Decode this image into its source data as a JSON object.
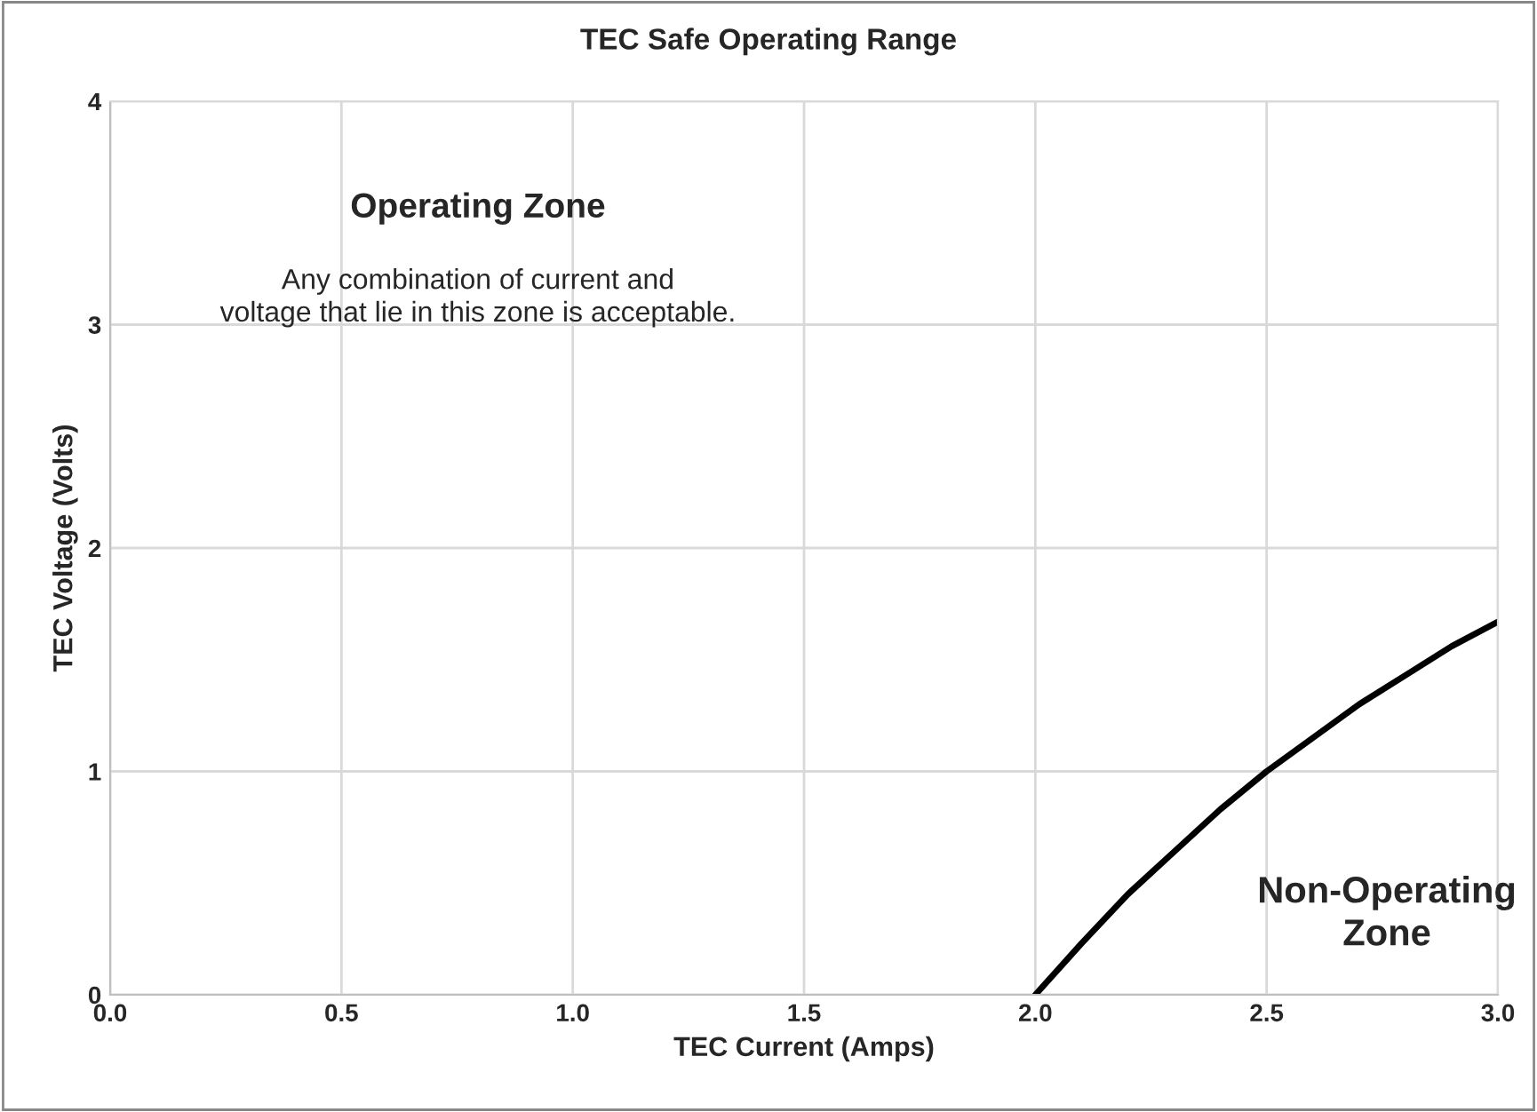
{
  "chart_data": {
    "type": "line",
    "title": "TEC Safe Operating Range",
    "xlabel": "TEC Current (Amps)",
    "ylabel": "TEC Voltage (Volts)",
    "x": [
      2.0,
      2.1,
      2.2,
      2.3,
      2.4,
      2.5,
      2.6,
      2.7,
      2.8,
      2.9,
      3.0
    ],
    "series": [
      {
        "color": "#000000",
        "values": [
          0,
          0.23,
          0.45,
          0.64,
          0.83,
          1.0,
          1.15,
          1.3,
          1.43,
          1.56,
          1.67
        ]
      }
    ],
    "xlim": [
      0,
      3
    ],
    "xticks": [
      {
        "value": 0,
        "label": "0.0"
      },
      0.5,
      {
        "value": 1,
        "label": "1.0"
      },
      1.5,
      {
        "value": 2,
        "label": "2.0"
      },
      2.5,
      {
        "value": 3,
        "label": "3.0"
      }
    ],
    "ylim": [
      0,
      4
    ],
    "yticks": [
      0,
      1,
      2,
      3,
      4
    ],
    "grid": true,
    "legend": false,
    "marker": "none",
    "line_style": "solid",
    "annotations": [
      "Operating Zone",
      "Any combination of current and\nvoltage that lie in this zone is acceptable.",
      "Non-Operating\nZone"
    ]
  }
}
